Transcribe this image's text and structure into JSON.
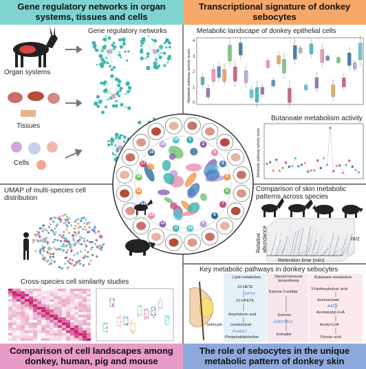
{
  "panels": {
    "gene_networks": {
      "title": "Gene regulatory networks in organ systems, tissues and cells",
      "subtitle": "Gene regulatory networks",
      "levels": [
        "Organ systems",
        "Tissues",
        "Cells"
      ]
    },
    "sebocyte_signature": {
      "title": "Transcriptional signature of donkey sebocytes",
      "landscape": {
        "title": "Metabolic landscape of donkey epithelial cells",
        "y_label": "Metabolic pathway activity score",
        "yticks": [
          "0",
          "1",
          "2",
          "3",
          "4"
        ]
      },
      "butanoate": {
        "title": "Butanoate metabolism activity",
        "y_label": "Metabolic pathway activity score"
      },
      "comparison": {
        "title": "Comparison of skin metabolic patterns across species",
        "y_label": "Relative abundance",
        "z_label": "m/z",
        "x_label": "Retention time (min)"
      }
    },
    "cell_landscapes": {
      "title": "Comparison of cell landscapes among donkey, human, pig and mouse",
      "umap": "UMAP of multi-species cell distribution",
      "similarity": "Cross-species cell similarity studies"
    },
    "sebocyte_role": {
      "title": "The role of sebocytes in the unique metabolic pattern of donkey skin",
      "pathways_title": "Key metabolic pathways in donkey sebocytes",
      "cell_label": "Sebocyte",
      "columns": [
        {
          "name": "Lipid metabolism",
          "items": [
            "12-HETE",
            "GPX4",
            "12-HPETE",
            "Arachidonic acid",
            "Linoleic acid",
            "PLA2G7",
            "Phosphatidylcholine"
          ]
        },
        {
          "name": "Steroid hormone biosynthesis",
          "items": [
            "Estrone 3-sulfate",
            "Estrone",
            "HSD17B12",
            "Estradiol"
          ]
        },
        {
          "name": "Butanoate metabolism",
          "items": [
            "3-Hydroxybutyric acid",
            "Acetoacetate",
            "AACS",
            "Acetoacetyl-CoA",
            "Acetyl-CoA",
            "Pyruvic acid"
          ]
        }
      ]
    }
  },
  "circle_numbers": [
    "1",
    "2",
    "3",
    "4",
    "5",
    "6",
    "7",
    "8",
    "9",
    "10",
    "11",
    "12",
    "13",
    "14",
    "15",
    "16",
    "17",
    "18",
    "19",
    "20"
  ]
}
